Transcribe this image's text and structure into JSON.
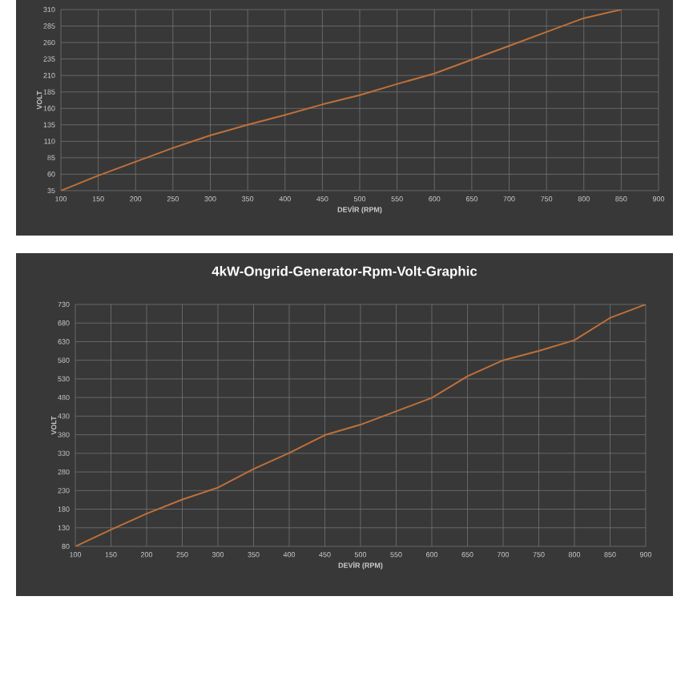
{
  "chart_data": [
    {
      "type": "line",
      "xlabel": "DEVİR (RPM)",
      "ylabel": "VOLT",
      "x": [
        100,
        150,
        200,
        250,
        300,
        350,
        400,
        450,
        500,
        550,
        600,
        650,
        700,
        750,
        800,
        850
      ],
      "series": [
        {
          "color": "#c0703a",
          "values": [
            35,
            58,
            79,
            100,
            119,
            135,
            150,
            166,
            180,
            197,
            213,
            234,
            255,
            276,
            297,
            310
          ]
        }
      ],
      "xlim": [
        100,
        900
      ],
      "xticks": [
        100,
        150,
        200,
        250,
        300,
        350,
        400,
        450,
        500,
        550,
        600,
        650,
        700,
        750,
        800,
        850,
        900
      ],
      "ylim": [
        35,
        310
      ],
      "yticks": [
        35,
        60,
        85,
        110,
        135,
        160,
        185,
        210,
        235,
        260,
        285,
        310
      ],
      "grid": true
    },
    {
      "type": "line",
      "title": "4kW-Ongrid-Generator-Rpm-Volt-Graphic",
      "xlabel": "DEVİR (RPM)",
      "ylabel": "VOLT",
      "x": [
        100,
        150,
        200,
        250,
        300,
        350,
        400,
        450,
        500,
        550,
        600,
        650,
        700,
        750,
        800,
        850,
        900
      ],
      "series": [
        {
          "color": "#c0703a",
          "values": [
            80,
            125,
            168,
            206,
            238,
            288,
            331,
            379,
            407,
            443,
            479,
            537,
            580,
            605,
            634,
            694,
            730
          ]
        }
      ],
      "xlim": [
        100,
        900
      ],
      "xticks": [
        100,
        150,
        200,
        250,
        300,
        350,
        400,
        450,
        500,
        550,
        600,
        650,
        700,
        750,
        800,
        850,
        900
      ],
      "ylim": [
        80,
        730
      ],
      "yticks": [
        80,
        130,
        180,
        230,
        280,
        330,
        380,
        430,
        480,
        530,
        580,
        630,
        680,
        730
      ],
      "grid": true
    }
  ]
}
